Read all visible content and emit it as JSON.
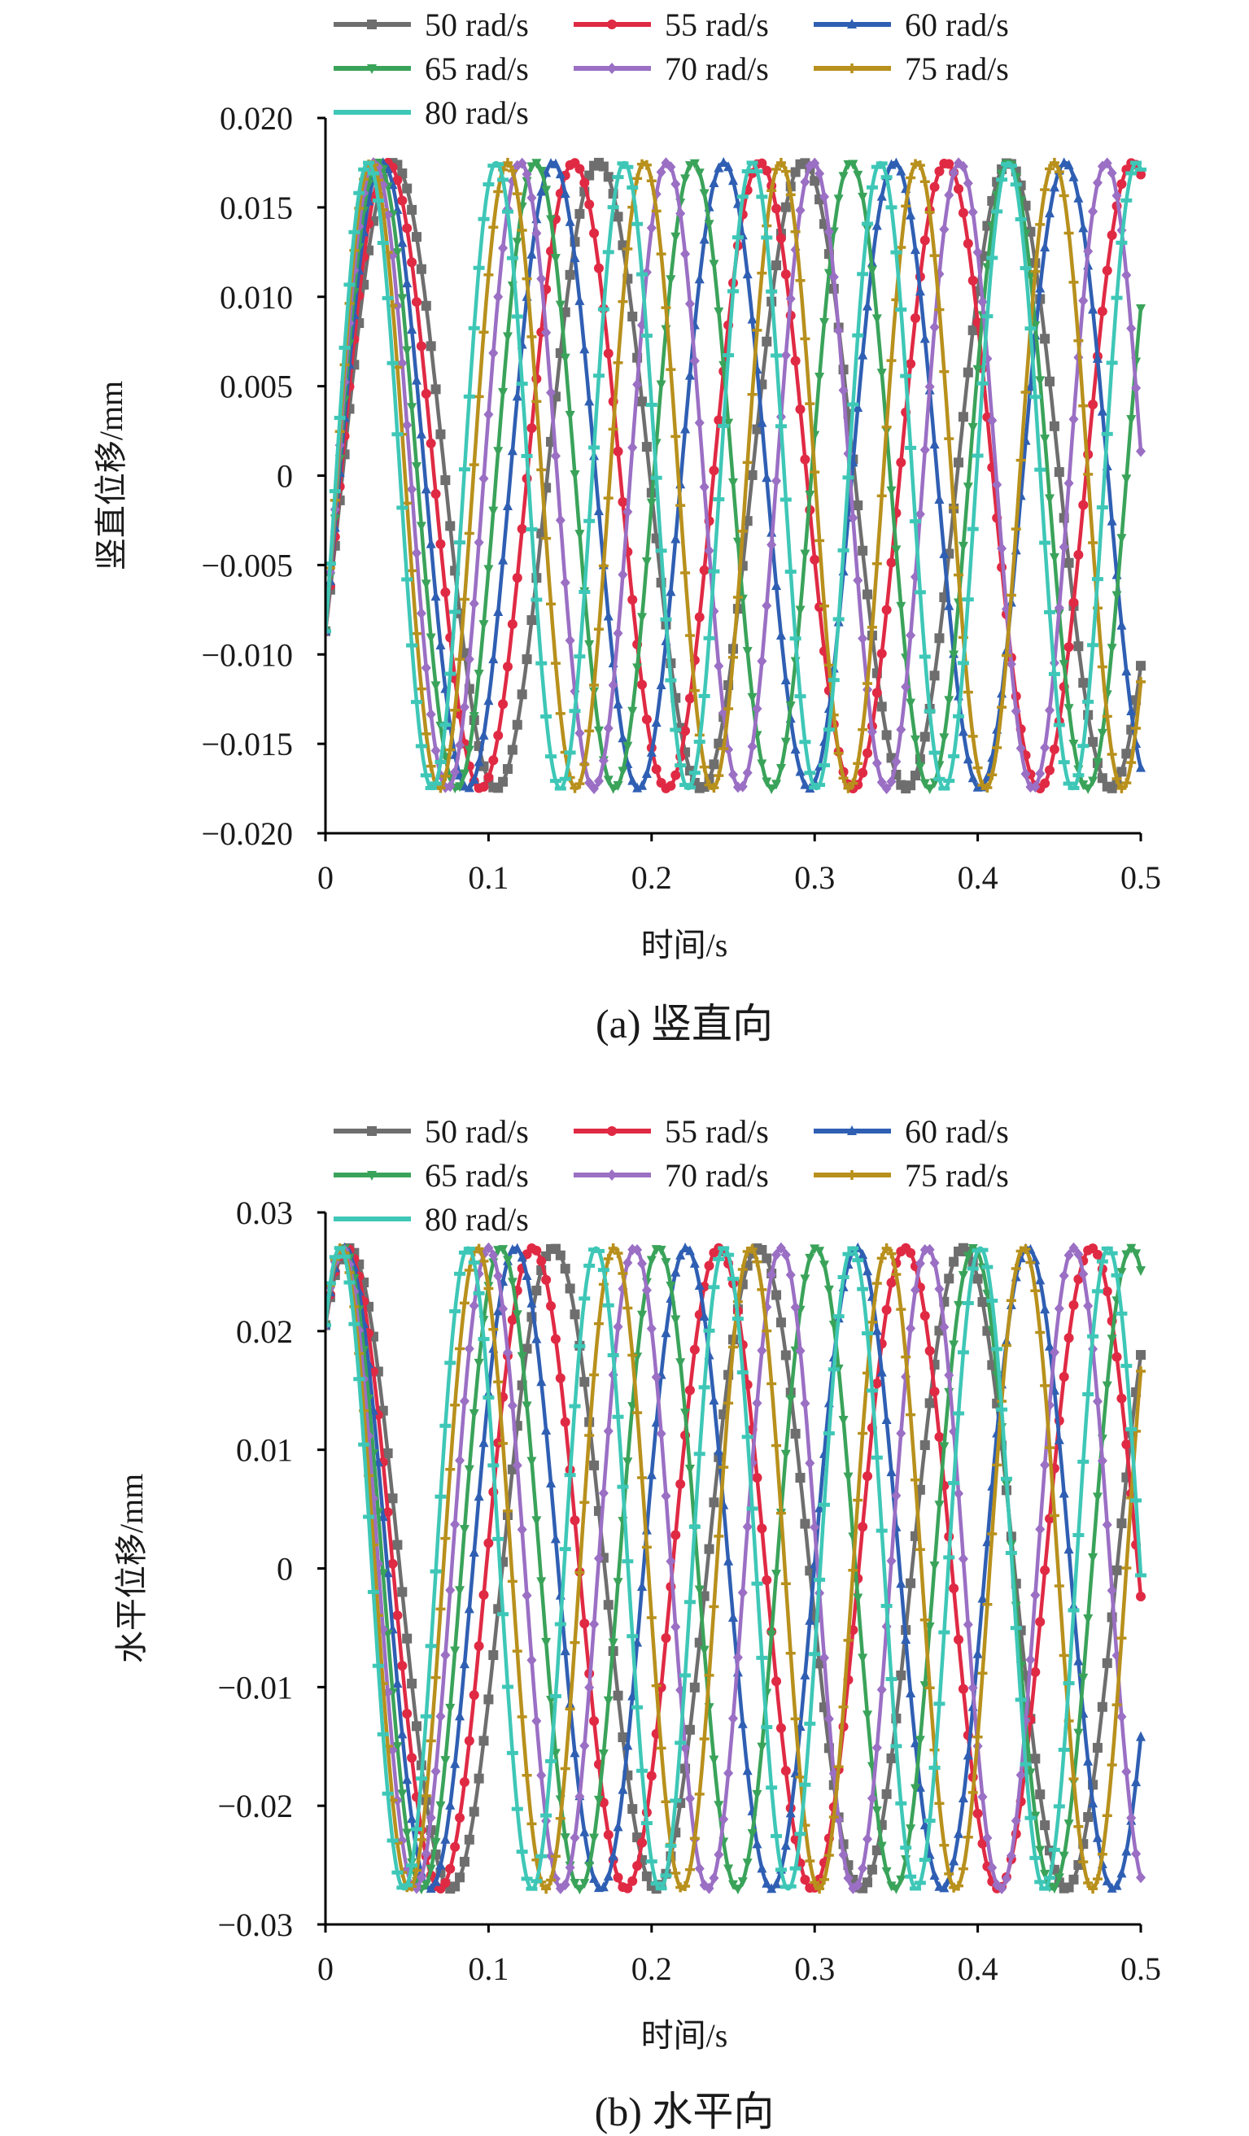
{
  "colors": {
    "50 rad/s": "#6e6e6e",
    "55 rad/s": "#e02a44",
    "60 rad/s": "#2f5fb3",
    "65 rad/s": "#3aa35a",
    "70 rad/s": "#9a6fc4",
    "75 rad/s": "#b8901c",
    "80 rad/s": "#3ec7b7"
  },
  "chart_data": [
    {
      "type": "line",
      "caption": "(a) 竖直向",
      "xlabel": "时间/s",
      "ylabel": "竖直位移/mm",
      "xlim": [
        0,
        0.5
      ],
      "ylim": [
        -0.02,
        0.02
      ],
      "xticks": [
        0,
        0.1,
        0.2,
        0.3,
        0.4,
        0.5
      ],
      "xtick_labels": [
        "0",
        "0.1",
        "0.2",
        "0.3",
        "0.4",
        "0.5"
      ],
      "yticks": [
        -0.02,
        -0.015,
        -0.01,
        -0.005,
        0,
        0.005,
        0.01,
        0.015,
        0.02
      ],
      "ytick_labels": [
        "−0.020",
        "−0.015",
        "−0.010",
        "−0.005",
        "0",
        "0.005",
        "0.010",
        "0.015",
        "0.020"
      ],
      "amplitude": 0.0175,
      "start_value": -0.0087,
      "series": [
        {
          "name": "50 rad/s",
          "omega": 50,
          "marker": "square"
        },
        {
          "name": "55 rad/s",
          "omega": 55,
          "marker": "circle"
        },
        {
          "name": "60 rad/s",
          "omega": 60,
          "marker": "triangle-up"
        },
        {
          "name": "65 rad/s",
          "omega": 65,
          "marker": "triangle-down"
        },
        {
          "name": "70 rad/s",
          "omega": 70,
          "marker": "diamond"
        },
        {
          "name": "75 rad/s",
          "omega": 75,
          "marker": "plus"
        },
        {
          "name": "80 rad/s",
          "omega": 80,
          "marker": "dash"
        }
      ]
    },
    {
      "type": "line",
      "caption": "(b) 水平向",
      "xlabel": "时间/s",
      "ylabel": "水平位移/mm",
      "xlim": [
        0,
        0.5
      ],
      "ylim": [
        -0.03,
        0.03
      ],
      "xticks": [
        0,
        0.1,
        0.2,
        0.3,
        0.4,
        0.5
      ],
      "xtick_labels": [
        "0",
        "0.1",
        "0.2",
        "0.3",
        "0.4",
        "0.5"
      ],
      "yticks": [
        -0.03,
        -0.02,
        -0.01,
        0,
        0.01,
        0.02,
        0.03
      ],
      "ytick_labels": [
        "−0.03",
        "−0.02",
        "−0.01",
        "0",
        "0.01",
        "0.02",
        "0.03"
      ],
      "amplitude": 0.027,
      "start_value": 0.0205,
      "series": [
        {
          "name": "50 rad/s",
          "omega": 50,
          "marker": "square"
        },
        {
          "name": "55 rad/s",
          "omega": 55,
          "marker": "circle"
        },
        {
          "name": "60 rad/s",
          "omega": 60,
          "marker": "triangle-up"
        },
        {
          "name": "65 rad/s",
          "omega": 65,
          "marker": "triangle-down"
        },
        {
          "name": "70 rad/s",
          "omega": 70,
          "marker": "diamond"
        },
        {
          "name": "75 rad/s",
          "omega": 75,
          "marker": "plus"
        },
        {
          "name": "80 rad/s",
          "omega": 80,
          "marker": "dash"
        }
      ]
    }
  ]
}
